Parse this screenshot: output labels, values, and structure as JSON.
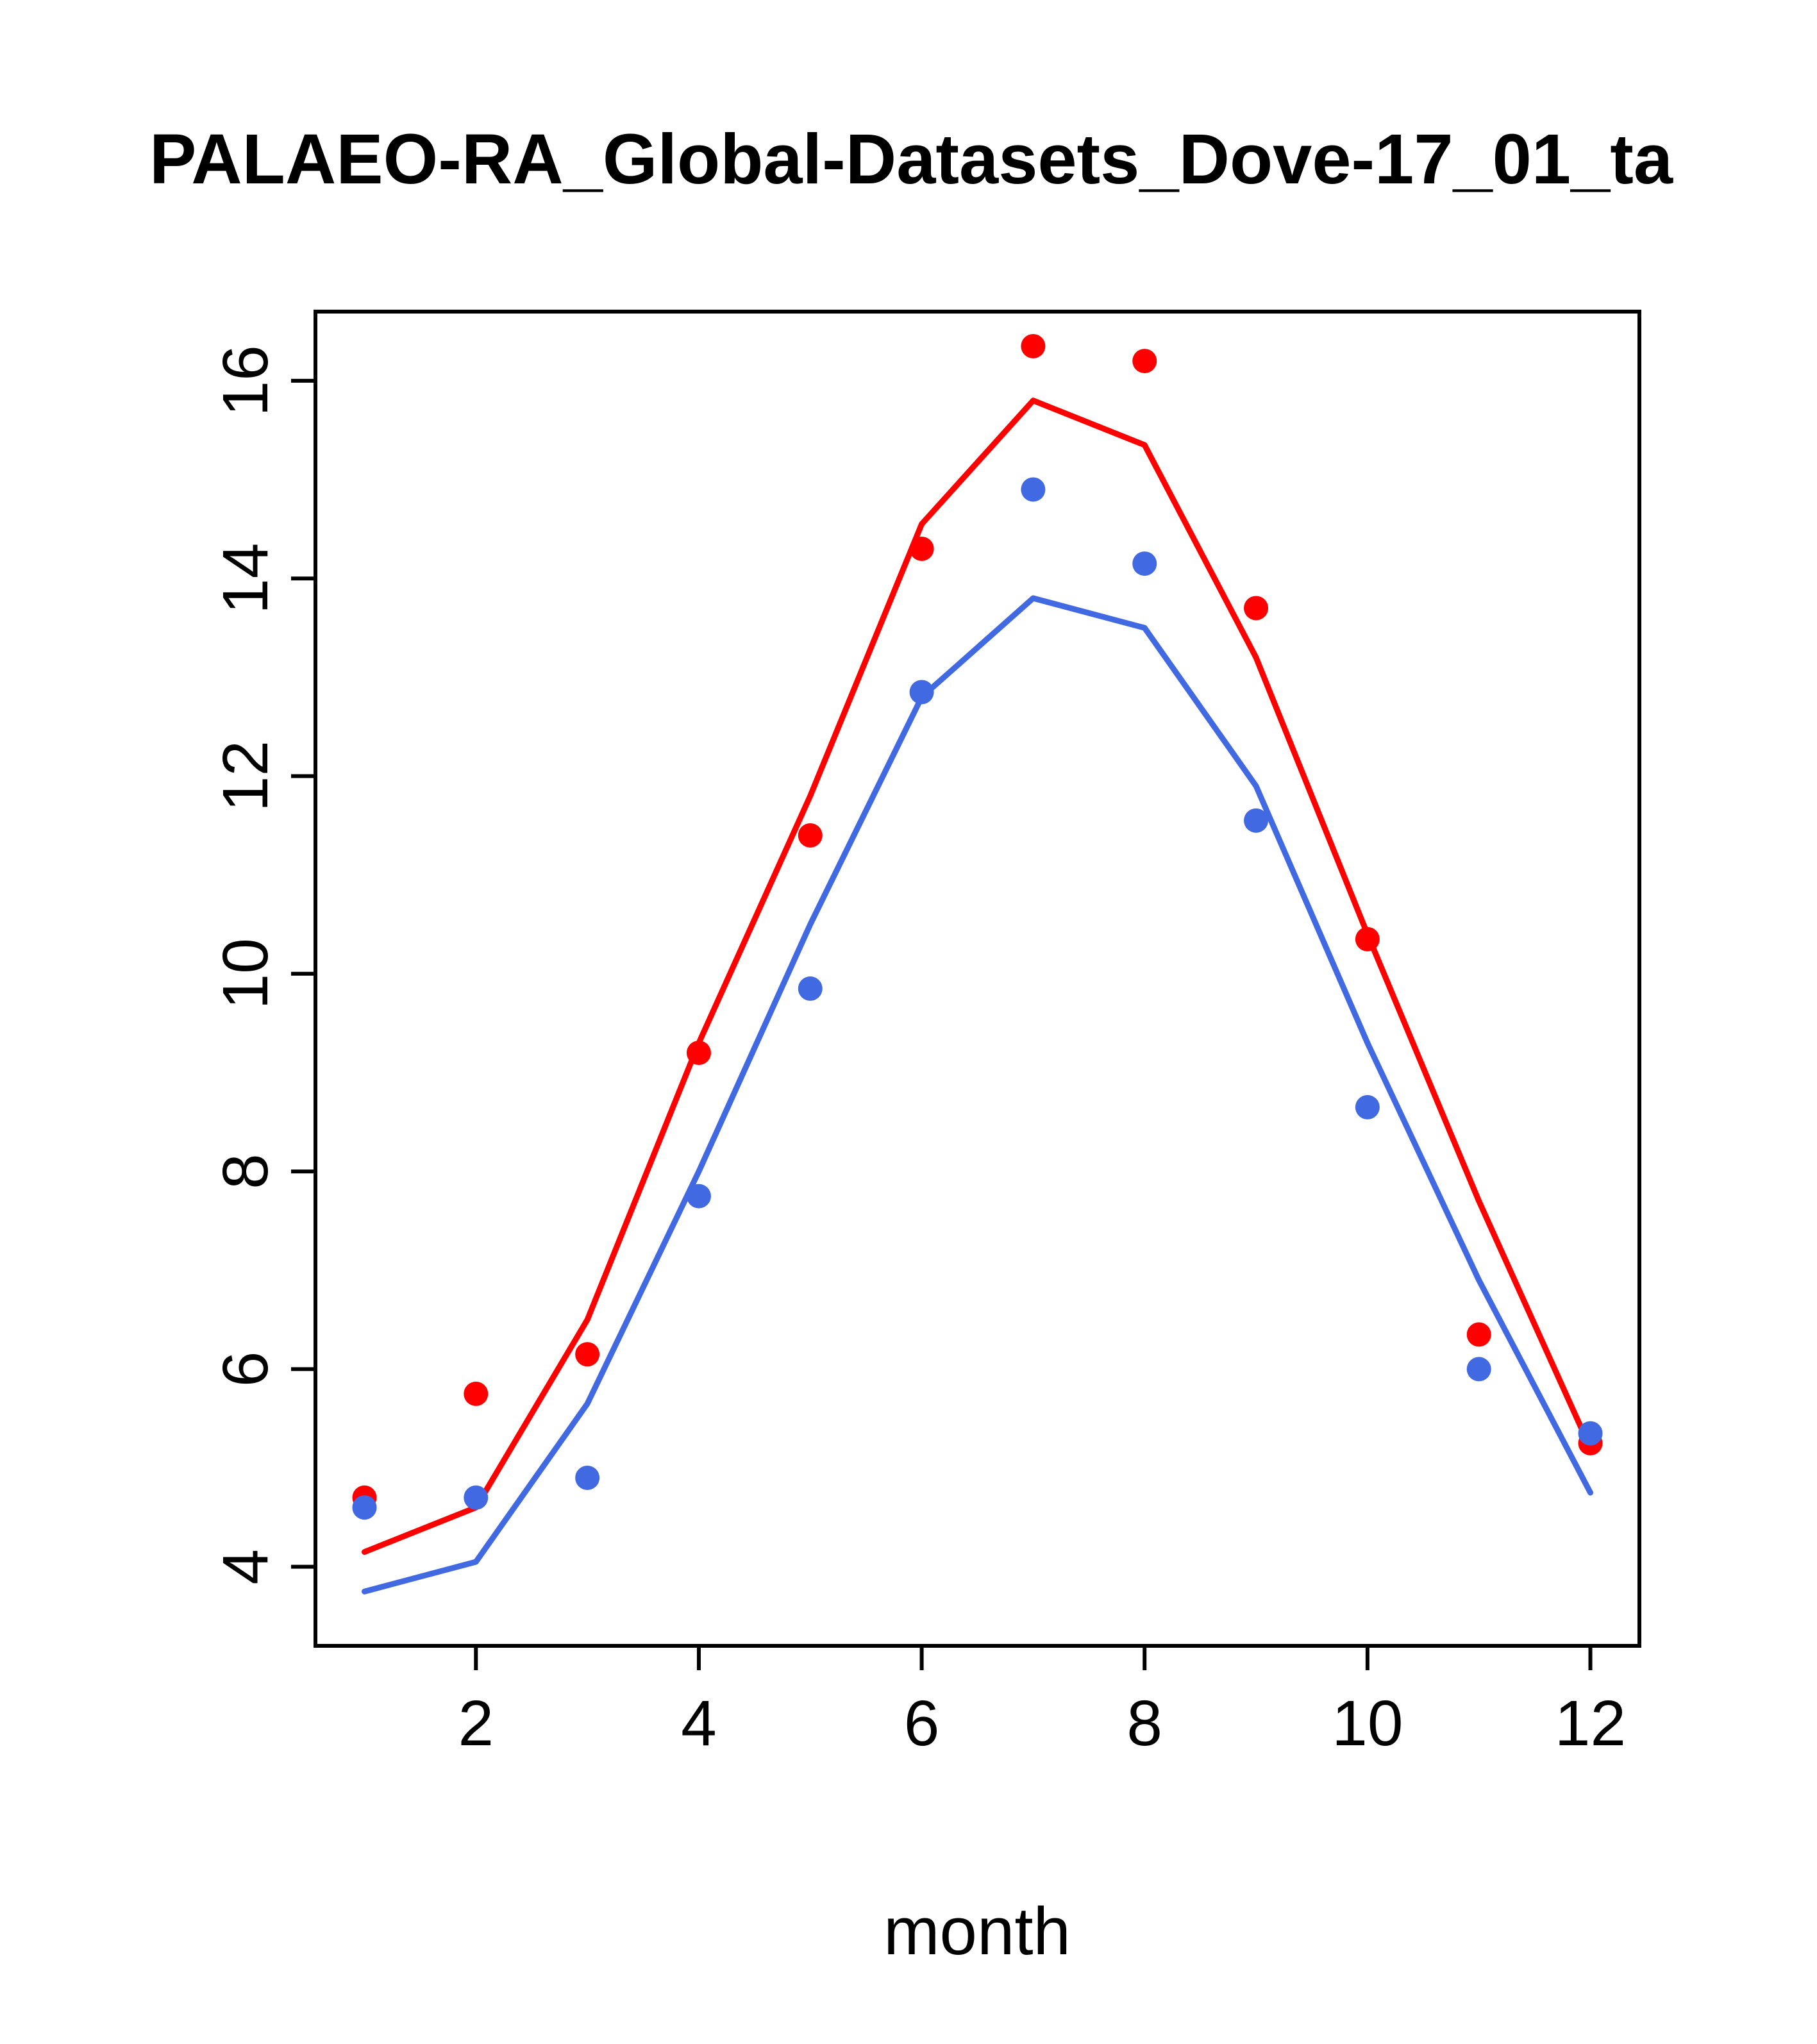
{
  "title": "PALAEO-RA_Global-Datasets_Dove-17_01_ta",
  "chart_data": {
    "type": "line",
    "title": "PALAEO-RA_Global-Datasets_Dove-17_01_ta",
    "xlabel": "month",
    "ylabel": "",
    "x": [
      1,
      2,
      3,
      4,
      5,
      6,
      7,
      8,
      9,
      10,
      11,
      12
    ],
    "xlim": [
      0.56,
      12.44
    ],
    "ylim": [
      3.2,
      16.7
    ],
    "xticks": [
      2,
      4,
      6,
      8,
      10,
      12
    ],
    "yticks": [
      4,
      6,
      8,
      10,
      12,
      14,
      16
    ],
    "grid": false,
    "legend": null,
    "series": [
      {
        "name": "red-line",
        "type": "line",
        "color": "#ff0000",
        "values": [
          4.15,
          4.6,
          6.5,
          9.3,
          11.8,
          14.55,
          15.8,
          15.35,
          13.2,
          10.4,
          7.7,
          5.2
        ]
      },
      {
        "name": "blue-line",
        "type": "line",
        "color": "#4169e1",
        "values": [
          3.75,
          4.05,
          5.65,
          8.0,
          10.5,
          12.8,
          13.8,
          13.5,
          11.9,
          9.3,
          6.9,
          4.75
        ]
      },
      {
        "name": "red-points",
        "type": "scatter",
        "color": "#ff0000",
        "values": [
          4.7,
          5.75,
          6.15,
          9.2,
          11.4,
          14.3,
          16.35,
          16.2,
          13.7,
          10.35,
          6.35,
          5.25
        ]
      },
      {
        "name": "blue-points",
        "type": "scatter",
        "color": "#4169e1",
        "values": [
          4.6,
          4.7,
          4.9,
          7.75,
          9.85,
          12.85,
          14.9,
          14.15,
          11.55,
          8.65,
          6.0,
          5.35
        ]
      }
    ]
  }
}
